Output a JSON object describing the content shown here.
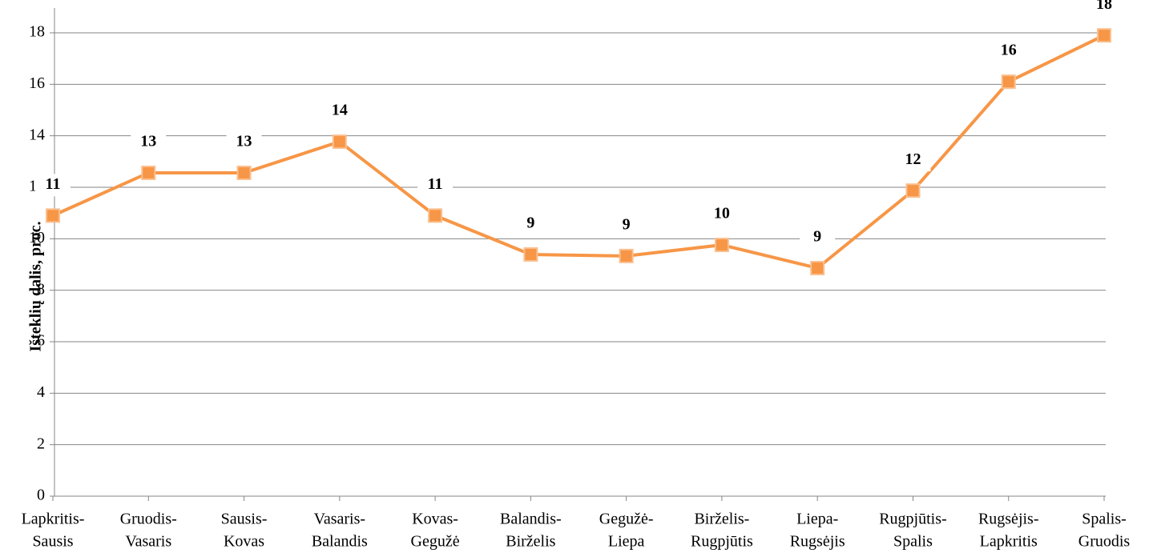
{
  "chart_data": {
    "type": "line",
    "y_label": "Išteklių dalis, proc.",
    "categories": [
      [
        "Lapkritis-",
        "Sausis"
      ],
      [
        "Gruodis-",
        "Vasaris"
      ],
      [
        "Sausis-",
        "Kovas"
      ],
      [
        "Vasaris-",
        "Balandis"
      ],
      [
        "Kovas-",
        "Gegužė"
      ],
      [
        "Balandis-",
        "Birželis"
      ],
      [
        "Gegužė-",
        "Liepa"
      ],
      [
        "Birželis-",
        "Rugpjūtis"
      ],
      [
        "Liepa-",
        "Rugsėjis"
      ],
      [
        "Rugpjūtis-",
        "Spalis"
      ],
      [
        "Rugsėjis-",
        "Lapkritis"
      ],
      [
        "Spalis-",
        "Gruodis"
      ]
    ],
    "values": [
      10.9,
      12.56,
      12.56,
      13.77,
      10.9,
      9.39,
      9.33,
      9.76,
      8.86,
      11.87,
      16.1,
      17.9
    ],
    "value_labels": [
      "11",
      "13",
      "13",
      "14",
      "11",
      "9",
      "9",
      "10",
      "9",
      "12",
      "16",
      "18"
    ],
    "color": "#f79646",
    "ylim": [
      0,
      18
    ],
    "yticks": [
      0,
      2,
      4,
      6,
      8,
      10,
      12,
      14,
      16,
      18
    ],
    "grid": true
  }
}
